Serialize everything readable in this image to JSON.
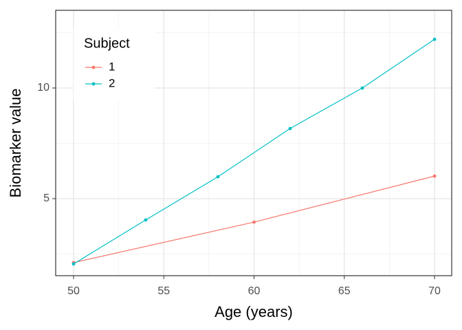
{
  "chart_data": {
    "type": "line",
    "x_label": "Age (years)",
    "y_label": "Biomarker value",
    "legend_title": "Subject",
    "legend_position": "top-left",
    "series": [
      {
        "name": "1",
        "color": "#F8766D",
        "x": [
          50,
          60,
          70
        ],
        "values": [
          2.11,
          3.94,
          6.02
        ]
      },
      {
        "name": "2",
        "color": "#00BFC4",
        "x": [
          50,
          54,
          58,
          62,
          66,
          70
        ],
        "values": [
          2.05,
          4.04,
          5.99,
          8.17,
          10.0,
          12.2
        ]
      }
    ],
    "xlim": [
      49.01,
      70.95
    ],
    "ylim": [
      1.52,
      13.51
    ],
    "xticks": [
      50,
      55,
      60,
      65,
      70
    ],
    "yticks": [
      5,
      10
    ],
    "minor_xticks": [
      52.5,
      57.5,
      62.5,
      67.5
    ],
    "minor_yticks": [
      2.5,
      7.5,
      12.5
    ],
    "grid": true
  }
}
